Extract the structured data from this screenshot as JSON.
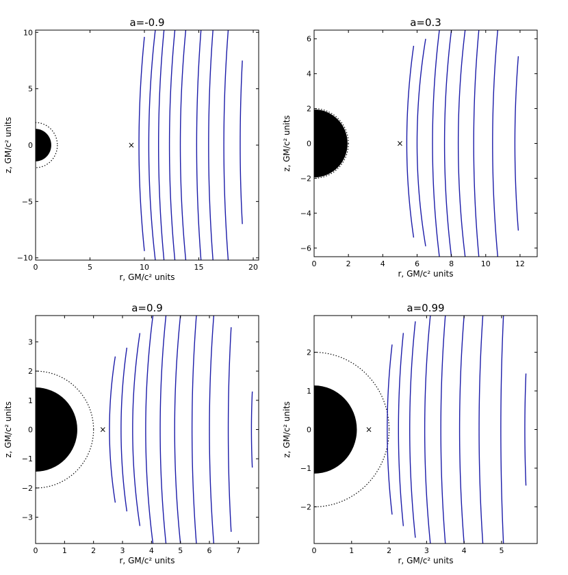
{
  "chart_data": [
    {
      "type": "line",
      "title": "a=-0.9",
      "xlabel": "r, GM/c² units",
      "ylabel": "z, GM/c² units",
      "xlim": [
        0,
        20.5
      ],
      "ylim": [
        -10.2,
        10.2
      ],
      "xticks": [
        0,
        5,
        10,
        15,
        20
      ],
      "yticks": [
        -10,
        -5,
        0,
        5,
        10
      ],
      "xtick_labels": [
        "0",
        "5",
        "10",
        "15",
        "20"
      ],
      "ytick_labels": [
        "−10",
        "−5",
        "0",
        "5",
        "10"
      ],
      "horizon_radius": 1.44,
      "ergosphere_radius": 2.0,
      "marker": {
        "r": 8.8,
        "z": 0,
        "symbol": "×"
      },
      "field_lines": [
        {
          "r_top": 10.0,
          "r_mid": 9.5,
          "r_bot": 10.0,
          "z_top": 9.6,
          "z_bot": -9.4
        },
        {
          "r_top": 11.0,
          "r_mid": 10.4,
          "r_bot": 11.0,
          "z_top": 10.2,
          "z_bot": -10.2
        },
        {
          "r_top": 11.8,
          "r_mid": 11.3,
          "r_bot": 11.8,
          "z_top": 10.2,
          "z_bot": -10.2
        },
        {
          "r_top": 12.8,
          "r_mid": 12.3,
          "r_bot": 12.8,
          "z_top": 10.2,
          "z_bot": -10.2
        },
        {
          "r_top": 13.8,
          "r_mid": 13.3,
          "r_bot": 13.8,
          "z_top": 10.2,
          "z_bot": -10.2
        },
        {
          "r_top": 15.2,
          "r_mid": 14.8,
          "r_bot": 15.2,
          "z_top": 10.2,
          "z_bot": -10.2
        },
        {
          "r_top": 16.3,
          "r_mid": 15.9,
          "r_bot": 16.3,
          "z_top": 10.2,
          "z_bot": -10.2
        },
        {
          "r_top": 17.7,
          "r_mid": 17.3,
          "r_bot": 17.7,
          "z_top": 10.2,
          "z_bot": -10.2
        },
        {
          "r_top": 19.0,
          "r_mid": 18.8,
          "r_bot": 19.0,
          "z_top": 7.5,
          "z_bot": -7.0
        }
      ]
    },
    {
      "type": "line",
      "title": "a=0.3",
      "xlabel": "r, GM/c² units",
      "ylabel": "z, GM/c² units",
      "xlim": [
        0,
        13
      ],
      "ylim": [
        -6.5,
        6.5
      ],
      "xticks": [
        0,
        2,
        4,
        6,
        8,
        10,
        12
      ],
      "yticks": [
        -6,
        -4,
        -2,
        0,
        2,
        4,
        6
      ],
      "xtick_labels": [
        "0",
        "2",
        "4",
        "6",
        "8",
        "10",
        "12"
      ],
      "ytick_labels": [
        "−6",
        "−4",
        "−2",
        "0",
        "2",
        "4",
        "6"
      ],
      "horizon_radius": 1.95,
      "ergosphere_radius": 2.0,
      "marker": {
        "r": 5.0,
        "z": 0,
        "symbol": "×"
      },
      "field_lines": [
        {
          "r_top": 5.8,
          "r_mid": 5.4,
          "r_bot": 5.8,
          "z_top": 5.6,
          "z_bot": -5.4
        },
        {
          "r_top": 6.5,
          "r_mid": 6.0,
          "r_bot": 6.5,
          "z_top": 6.0,
          "z_bot": -5.9
        },
        {
          "r_top": 7.3,
          "r_mid": 6.9,
          "r_bot": 7.3,
          "z_top": 6.5,
          "z_bot": -6.5
        },
        {
          "r_top": 8.0,
          "r_mid": 7.6,
          "r_bot": 8.0,
          "z_top": 6.5,
          "z_bot": -6.5
        },
        {
          "r_top": 8.8,
          "r_mid": 8.4,
          "r_bot": 8.8,
          "z_top": 6.5,
          "z_bot": -6.5
        },
        {
          "r_top": 9.6,
          "r_mid": 9.3,
          "r_bot": 9.6,
          "z_top": 6.5,
          "z_bot": -6.5
        },
        {
          "r_top": 10.7,
          "r_mid": 10.4,
          "r_bot": 10.7,
          "z_top": 6.5,
          "z_bot": -6.5
        },
        {
          "r_top": 11.9,
          "r_mid": 11.7,
          "r_bot": 11.9,
          "z_top": 5.0,
          "z_bot": -5.0
        }
      ]
    },
    {
      "type": "line",
      "title": "a=0.9",
      "xlabel": "r, GM/c² units",
      "ylabel": "z, GM/c² units",
      "xlim": [
        0,
        7.7
      ],
      "ylim": [
        -3.9,
        3.9
      ],
      "xticks": [
        0,
        1,
        2,
        3,
        4,
        5,
        6,
        7
      ],
      "yticks": [
        -3,
        -2,
        -1,
        0,
        1,
        2,
        3
      ],
      "xtick_labels": [
        "0",
        "1",
        "2",
        "3",
        "4",
        "5",
        "6",
        "7"
      ],
      "ytick_labels": [
        "−3",
        "−2",
        "−1",
        "0",
        "1",
        "2",
        "3"
      ],
      "horizon_radius": 1.44,
      "ergosphere_radius": 2.0,
      "marker": {
        "r": 2.32,
        "z": 0,
        "symbol": "×"
      },
      "field_lines": [
        {
          "r_top": 2.75,
          "r_mid": 2.55,
          "r_bot": 2.75,
          "z_top": 2.5,
          "z_bot": -2.5
        },
        {
          "r_top": 3.15,
          "r_mid": 2.95,
          "r_bot": 3.15,
          "z_top": 2.8,
          "z_bot": -2.8
        },
        {
          "r_top": 3.6,
          "r_mid": 3.35,
          "r_bot": 3.6,
          "z_top": 3.3,
          "z_bot": -3.3
        },
        {
          "r_top": 4.05,
          "r_mid": 3.8,
          "r_bot": 4.05,
          "z_top": 3.9,
          "z_bot": -3.9
        },
        {
          "r_top": 4.5,
          "r_mid": 4.3,
          "r_bot": 4.5,
          "z_top": 3.9,
          "z_bot": -3.9
        },
        {
          "r_top": 5.0,
          "r_mid": 4.8,
          "r_bot": 5.0,
          "z_top": 3.9,
          "z_bot": -3.9
        },
        {
          "r_top": 5.55,
          "r_mid": 5.4,
          "r_bot": 5.55,
          "z_top": 3.9,
          "z_bot": -3.9
        },
        {
          "r_top": 6.15,
          "r_mid": 6.0,
          "r_bot": 6.15,
          "z_top": 3.9,
          "z_bot": -3.9
        },
        {
          "r_top": 6.75,
          "r_mid": 6.65,
          "r_bot": 6.75,
          "z_top": 3.5,
          "z_bot": -3.5
        },
        {
          "r_top": 7.48,
          "r_mid": 7.45,
          "r_bot": 7.48,
          "z_top": 1.3,
          "z_bot": -1.3
        }
      ]
    },
    {
      "type": "line",
      "title": "a=0.99",
      "xlabel": "r, GM/c² units",
      "ylabel": "z, GM/c² units",
      "xlim": [
        0,
        5.95
      ],
      "ylim": [
        -2.95,
        2.95
      ],
      "xticks": [
        0,
        1,
        2,
        3,
        4,
        5
      ],
      "yticks": [
        -2,
        -1,
        0,
        1,
        2
      ],
      "xtick_labels": [
        "0",
        "1",
        "2",
        "3",
        "4",
        "5"
      ],
      "ytick_labels": [
        "−2",
        "−1",
        "0",
        "1",
        "2"
      ],
      "horizon_radius": 1.14,
      "ergosphere_radius": 2.0,
      "marker": {
        "r": 1.46,
        "z": 0,
        "symbol": "×"
      },
      "field_lines": [
        {
          "r_top": 2.08,
          "r_mid": 1.95,
          "r_bot": 2.08,
          "z_top": 2.2,
          "z_bot": -2.2
        },
        {
          "r_top": 2.38,
          "r_mid": 2.25,
          "r_bot": 2.38,
          "z_top": 2.5,
          "z_bot": -2.5
        },
        {
          "r_top": 2.7,
          "r_mid": 2.55,
          "r_bot": 2.7,
          "z_top": 2.8,
          "z_bot": -2.8
        },
        {
          "r_top": 3.1,
          "r_mid": 2.95,
          "r_bot": 3.1,
          "z_top": 2.95,
          "z_bot": -2.95
        },
        {
          "r_top": 3.5,
          "r_mid": 3.38,
          "r_bot": 3.5,
          "z_top": 2.95,
          "z_bot": -2.95
        },
        {
          "r_top": 4.0,
          "r_mid": 3.88,
          "r_bot": 4.0,
          "z_top": 2.95,
          "z_bot": -2.95
        },
        {
          "r_top": 4.5,
          "r_mid": 4.4,
          "r_bot": 4.5,
          "z_top": 2.95,
          "z_bot": -2.95
        },
        {
          "r_top": 5.05,
          "r_mid": 4.98,
          "r_bot": 5.05,
          "z_top": 2.95,
          "z_bot": -2.95
        },
        {
          "r_top": 5.65,
          "r_mid": 5.62,
          "r_bot": 5.65,
          "z_top": 1.45,
          "z_bot": -1.45
        }
      ]
    }
  ]
}
